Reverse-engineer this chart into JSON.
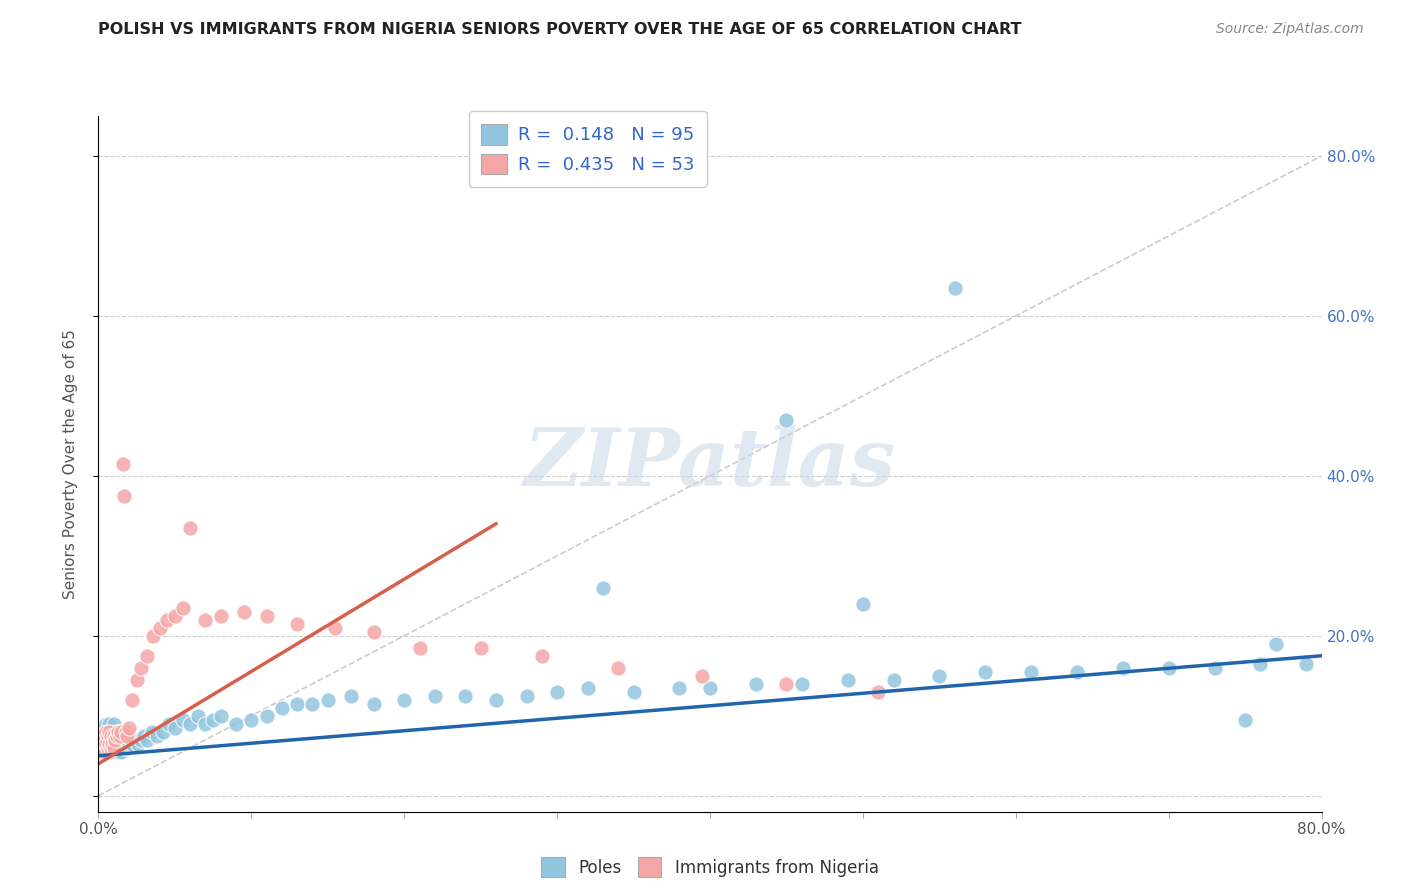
{
  "title": "POLISH VS IMMIGRANTS FROM NIGERIA SENIORS POVERTY OVER THE AGE OF 65 CORRELATION CHART",
  "source": "Source: ZipAtlas.com",
  "ylabel": "Seniors Poverty Over the Age of 65",
  "xlim": [
    0.0,
    0.8
  ],
  "ylim": [
    -0.02,
    0.85
  ],
  "xticks": [
    0.0,
    0.1,
    0.2,
    0.3,
    0.4,
    0.5,
    0.6,
    0.7,
    0.8
  ],
  "yticks": [
    0.0,
    0.2,
    0.4,
    0.6,
    0.8
  ],
  "ytick_labels": [
    "",
    "20.0%",
    "40.0%",
    "60.0%",
    "80.0%"
  ],
  "xtick_labels": [
    "0.0%",
    "",
    "",
    "",
    "",
    "",
    "",
    "",
    "80.0%"
  ],
  "blue_R": 0.148,
  "blue_N": 95,
  "pink_R": 0.435,
  "pink_N": 53,
  "blue_color": "#92c5de",
  "pink_color": "#f4a6a6",
  "blue_line_color": "#2166ac",
  "pink_line_color": "#d6604d",
  "watermark": "ZIPatlas",
  "legend_label_1": "Poles",
  "legend_label_2": "Immigrants from Nigeria",
  "blue_trend_x": [
    0.0,
    0.8
  ],
  "blue_trend_y": [
    0.05,
    0.175
  ],
  "pink_trend_x": [
    0.0,
    0.26
  ],
  "pink_trend_y": [
    0.04,
    0.34
  ],
  "grey_line_x": [
    0.0,
    0.8
  ],
  "grey_line_y": [
    0.0,
    0.8
  ],
  "blue_scatter_x": [
    0.001,
    0.001,
    0.001,
    0.002,
    0.002,
    0.002,
    0.003,
    0.003,
    0.004,
    0.004,
    0.005,
    0.005,
    0.005,
    0.006,
    0.006,
    0.007,
    0.007,
    0.007,
    0.008,
    0.008,
    0.009,
    0.009,
    0.01,
    0.01,
    0.01,
    0.011,
    0.011,
    0.012,
    0.012,
    0.013,
    0.013,
    0.014,
    0.014,
    0.015,
    0.015,
    0.016,
    0.017,
    0.018,
    0.019,
    0.02,
    0.022,
    0.024,
    0.026,
    0.028,
    0.03,
    0.032,
    0.035,
    0.038,
    0.042,
    0.046,
    0.05,
    0.055,
    0.06,
    0.065,
    0.07,
    0.075,
    0.08,
    0.09,
    0.1,
    0.11,
    0.12,
    0.13,
    0.14,
    0.15,
    0.165,
    0.18,
    0.2,
    0.22,
    0.24,
    0.26,
    0.28,
    0.3,
    0.32,
    0.35,
    0.38,
    0.4,
    0.43,
    0.46,
    0.49,
    0.52,
    0.55,
    0.58,
    0.61,
    0.64,
    0.67,
    0.7,
    0.73,
    0.76,
    0.79,
    0.33,
    0.45,
    0.5,
    0.56,
    0.75,
    0.77
  ],
  "blue_scatter_y": [
    0.055,
    0.07,
    0.085,
    0.055,
    0.07,
    0.08,
    0.06,
    0.075,
    0.055,
    0.07,
    0.06,
    0.075,
    0.09,
    0.055,
    0.065,
    0.06,
    0.075,
    0.09,
    0.06,
    0.08,
    0.055,
    0.07,
    0.06,
    0.075,
    0.09,
    0.055,
    0.07,
    0.06,
    0.08,
    0.055,
    0.075,
    0.06,
    0.08,
    0.055,
    0.075,
    0.065,
    0.06,
    0.07,
    0.06,
    0.065,
    0.065,
    0.07,
    0.065,
    0.07,
    0.075,
    0.07,
    0.08,
    0.075,
    0.08,
    0.09,
    0.085,
    0.095,
    0.09,
    0.1,
    0.09,
    0.095,
    0.1,
    0.09,
    0.095,
    0.1,
    0.11,
    0.115,
    0.115,
    0.12,
    0.125,
    0.115,
    0.12,
    0.125,
    0.125,
    0.12,
    0.125,
    0.13,
    0.135,
    0.13,
    0.135,
    0.135,
    0.14,
    0.14,
    0.145,
    0.145,
    0.15,
    0.155,
    0.155,
    0.155,
    0.16,
    0.16,
    0.16,
    0.165,
    0.165,
    0.26,
    0.47,
    0.24,
    0.635,
    0.095,
    0.19
  ],
  "pink_scatter_x": [
    0.001,
    0.001,
    0.002,
    0.002,
    0.003,
    0.003,
    0.004,
    0.004,
    0.005,
    0.005,
    0.006,
    0.006,
    0.007,
    0.007,
    0.008,
    0.008,
    0.009,
    0.01,
    0.01,
    0.011,
    0.012,
    0.013,
    0.014,
    0.015,
    0.016,
    0.017,
    0.018,
    0.019,
    0.02,
    0.022,
    0.025,
    0.028,
    0.032,
    0.036,
    0.04,
    0.045,
    0.05,
    0.055,
    0.06,
    0.07,
    0.08,
    0.095,
    0.11,
    0.13,
    0.155,
    0.18,
    0.21,
    0.25,
    0.29,
    0.34,
    0.395,
    0.45,
    0.51
  ],
  "pink_scatter_y": [
    0.055,
    0.07,
    0.06,
    0.075,
    0.06,
    0.075,
    0.055,
    0.07,
    0.065,
    0.08,
    0.06,
    0.075,
    0.065,
    0.08,
    0.06,
    0.075,
    0.065,
    0.06,
    0.075,
    0.07,
    0.075,
    0.08,
    0.075,
    0.08,
    0.415,
    0.375,
    0.08,
    0.075,
    0.085,
    0.12,
    0.145,
    0.16,
    0.175,
    0.2,
    0.21,
    0.22,
    0.225,
    0.235,
    0.335,
    0.22,
    0.225,
    0.23,
    0.225,
    0.215,
    0.21,
    0.205,
    0.185,
    0.185,
    0.175,
    0.16,
    0.15,
    0.14,
    0.13
  ]
}
